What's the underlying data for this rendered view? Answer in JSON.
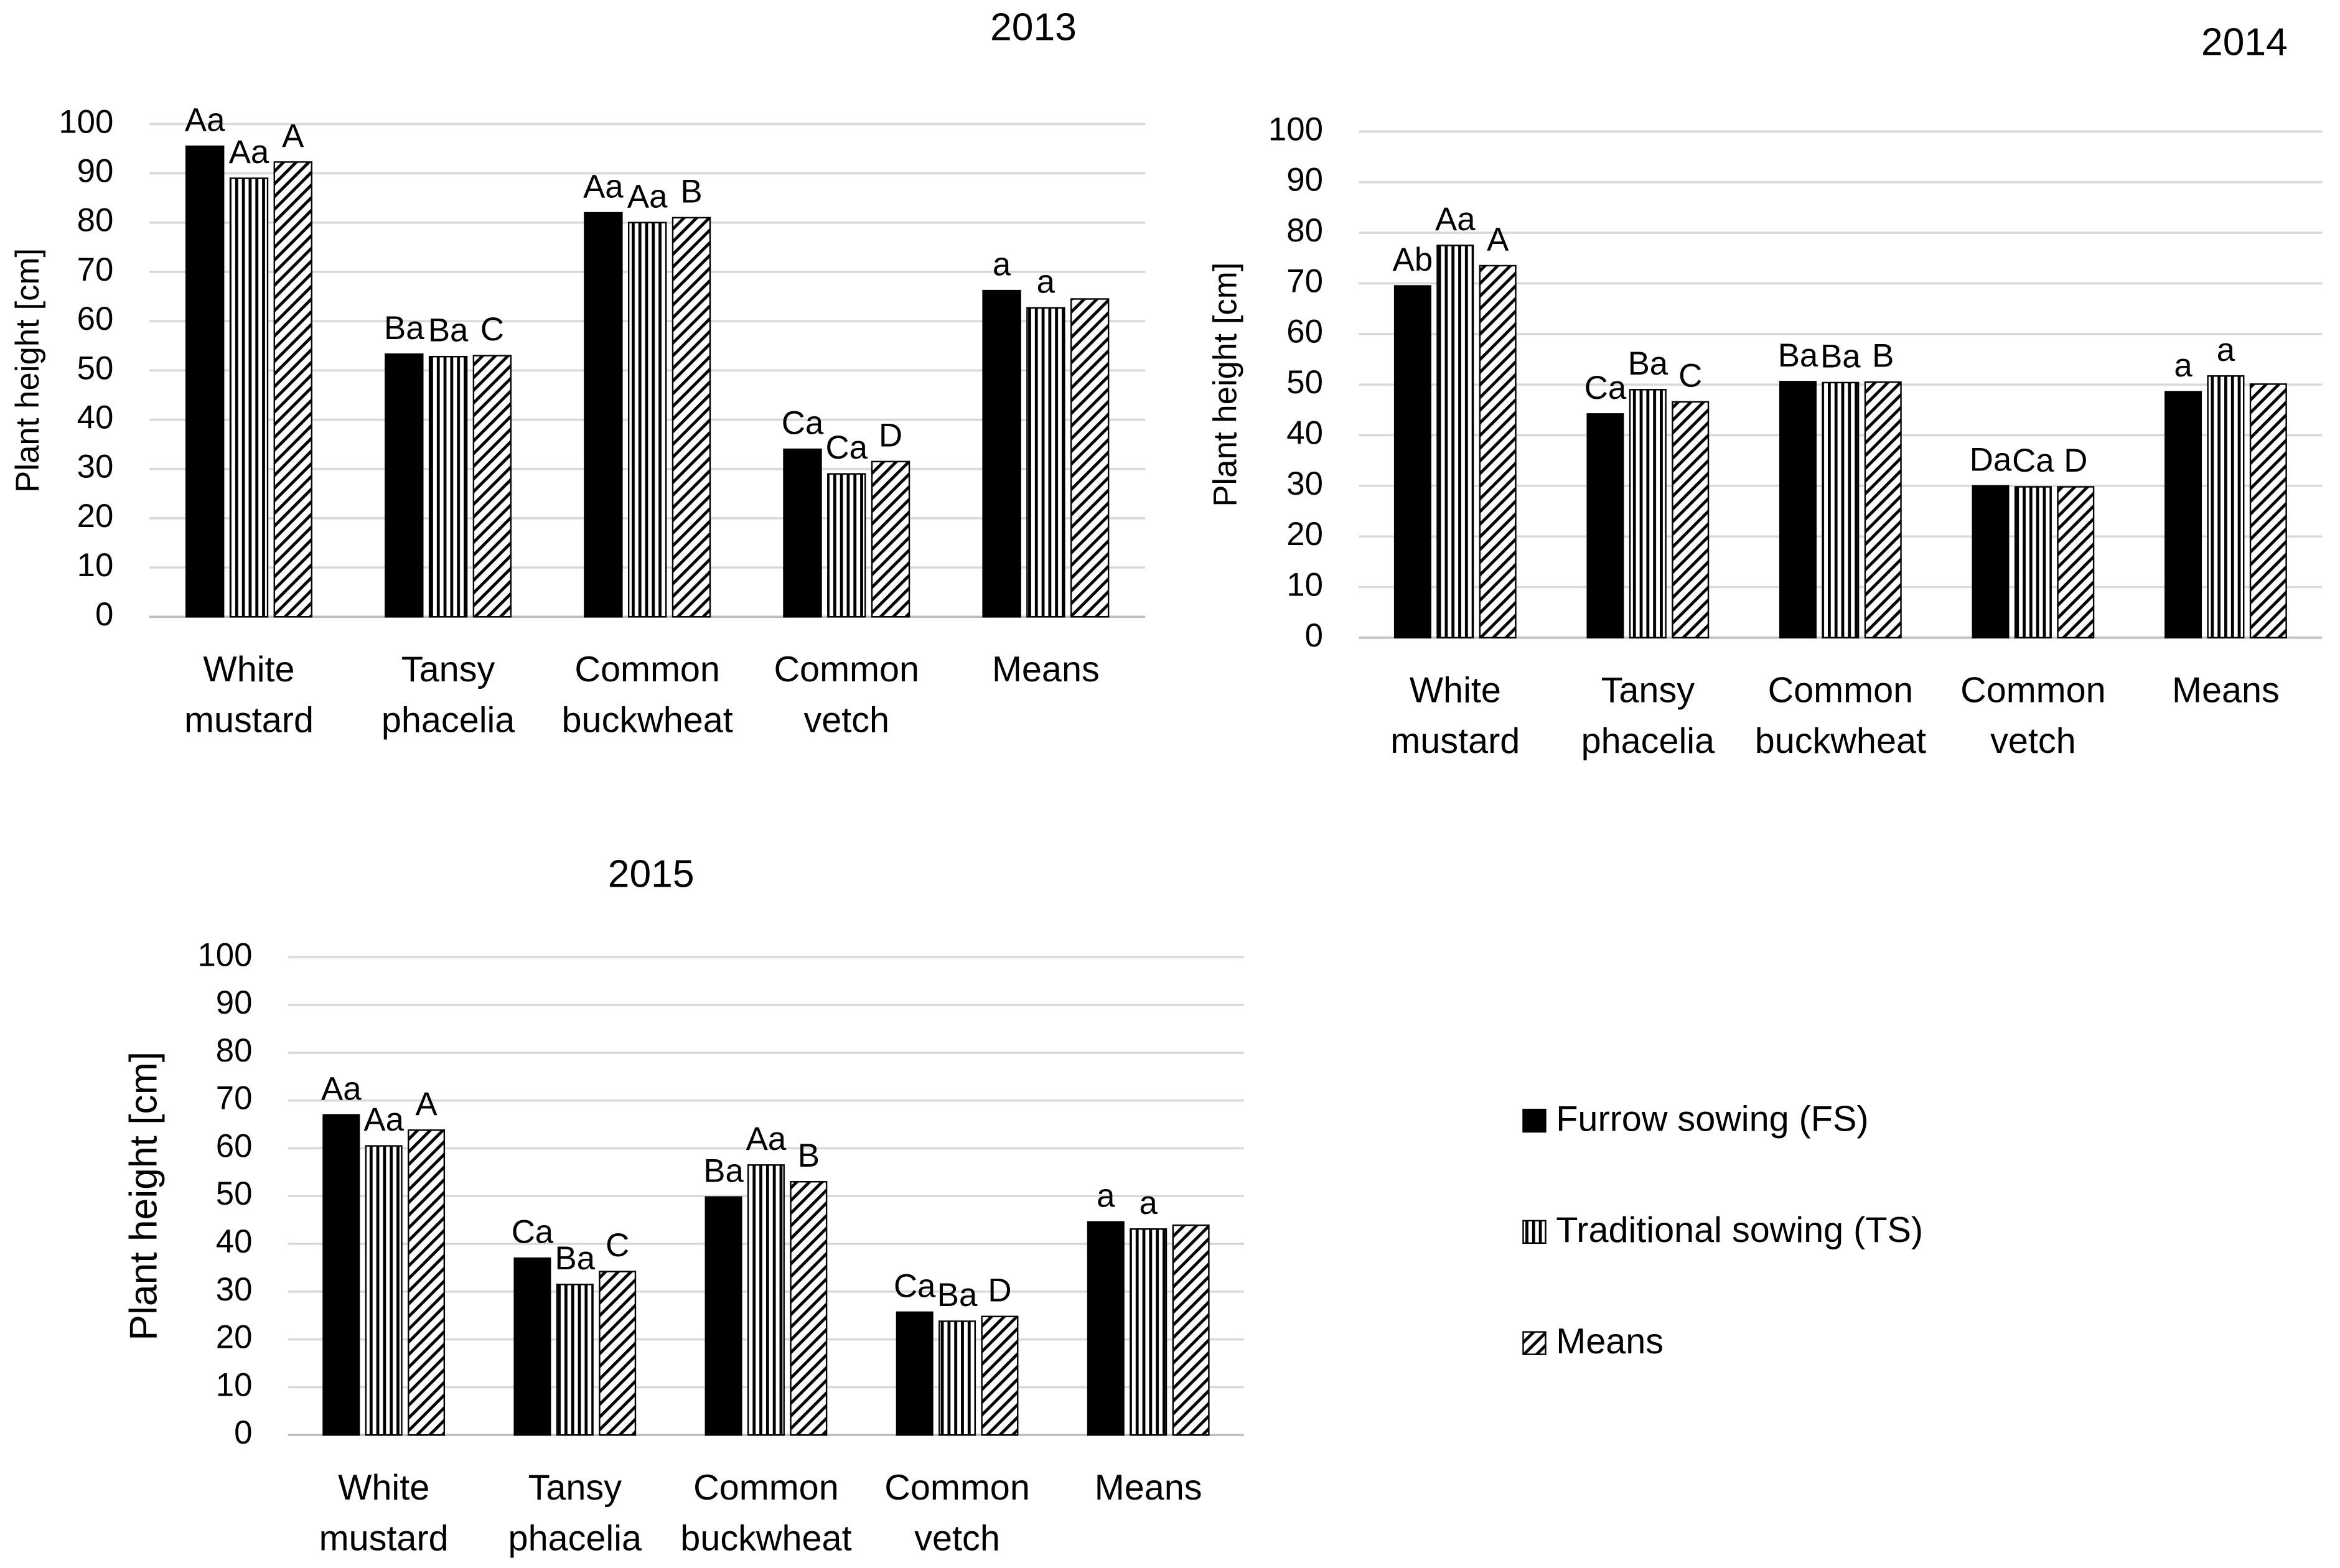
{
  "chart_data": [
    {
      "type": "bar",
      "title": "2013",
      "y_label": "Plant height [cm]",
      "categories": [
        "White mustard",
        "Tansy phacelia",
        "Common buckwheat",
        "Common vetch",
        "Means"
      ],
      "series": [
        {
          "pattern": "solid",
          "color": "#000000",
          "values": [
            95.5,
            53.3,
            82,
            34,
            66.2
          ],
          "letters": [
            "Aa",
            "Ba",
            "Aa",
            "Ca",
            "a"
          ]
        },
        {
          "pattern": "vertical",
          "color": "#000000",
          "values": [
            89,
            52.8,
            80,
            29,
            62.7
          ],
          "letters": [
            "Aa",
            "Ba",
            "Aa",
            "Ca",
            "a"
          ]
        },
        {
          "pattern": "diagonal",
          "color": "#000000",
          "values": [
            92.3,
            53,
            81,
            31.5,
            64.5
          ],
          "letters": [
            "A",
            "C",
            "B",
            "D",
            null
          ]
        }
      ],
      "ylim": [
        0,
        100
      ],
      "yticks": [
        0,
        10,
        20,
        30,
        40,
        50,
        60,
        70,
        80,
        90,
        100
      ],
      "grid": true
    },
    {
      "type": "bar",
      "title": "2014",
      "y_label": "Plant height [cm]",
      "categories": [
        "White mustard",
        "Tansy phacelia",
        "Common buckwheat",
        "Common vetch",
        "Means"
      ],
      "series": [
        {
          "pattern": "solid",
          "color": "#000000",
          "values": [
            69.5,
            44.2,
            50.6,
            30,
            48.6
          ],
          "letters": [
            "Ab",
            "Ca",
            "Ba",
            "Da",
            "a"
          ]
        },
        {
          "pattern": "vertical",
          "color": "#000000",
          "values": [
            77.5,
            49,
            50.4,
            29.8,
            51.7
          ],
          "letters": [
            "Aa",
            "Ba",
            "Ba",
            "Ca",
            "a"
          ]
        },
        {
          "pattern": "diagonal",
          "color": "#000000",
          "values": [
            73.5,
            46.6,
            50.5,
            29.8,
            50.1
          ],
          "letters": [
            "A",
            "C",
            "B",
            "D",
            null
          ]
        }
      ],
      "ylim": [
        0,
        100
      ],
      "yticks": [
        0,
        10,
        20,
        30,
        40,
        50,
        60,
        70,
        80,
        90,
        100
      ],
      "grid": true
    },
    {
      "type": "bar",
      "title": "2015",
      "y_label": "Plant height [cm]",
      "categories": [
        "White mustard",
        "Tansy phacelia",
        "Common buckwheat",
        "Common vetch",
        "Means"
      ],
      "series": [
        {
          "name": "Furrow sowing (FS)",
          "pattern": "solid",
          "color": "#000000",
          "values": [
            67,
            37,
            49.8,
            25.7,
            44.6
          ],
          "letters": [
            "Aa",
            "Ca",
            "Ba",
            "Ca",
            "a"
          ]
        },
        {
          "name": "Traditional sowing (TS)",
          "pattern": "vertical",
          "color": "#000000",
          "values": [
            60.5,
            31.5,
            56.5,
            23.8,
            43.1
          ],
          "letters": [
            "Aa",
            "Ba",
            "Aa",
            "Ba",
            "a"
          ]
        },
        {
          "name": "Means",
          "pattern": "diagonal",
          "color": "#000000",
          "values": [
            63.8,
            34.2,
            53,
            24.8,
            43.9
          ],
          "letters": [
            "A",
            "C",
            "B",
            "D",
            null
          ]
        }
      ],
      "ylim": [
        0,
        100
      ],
      "yticks": [
        0,
        10,
        20,
        30,
        40,
        50,
        60,
        70,
        80,
        90,
        100
      ],
      "grid": true,
      "legend": "right"
    }
  ]
}
